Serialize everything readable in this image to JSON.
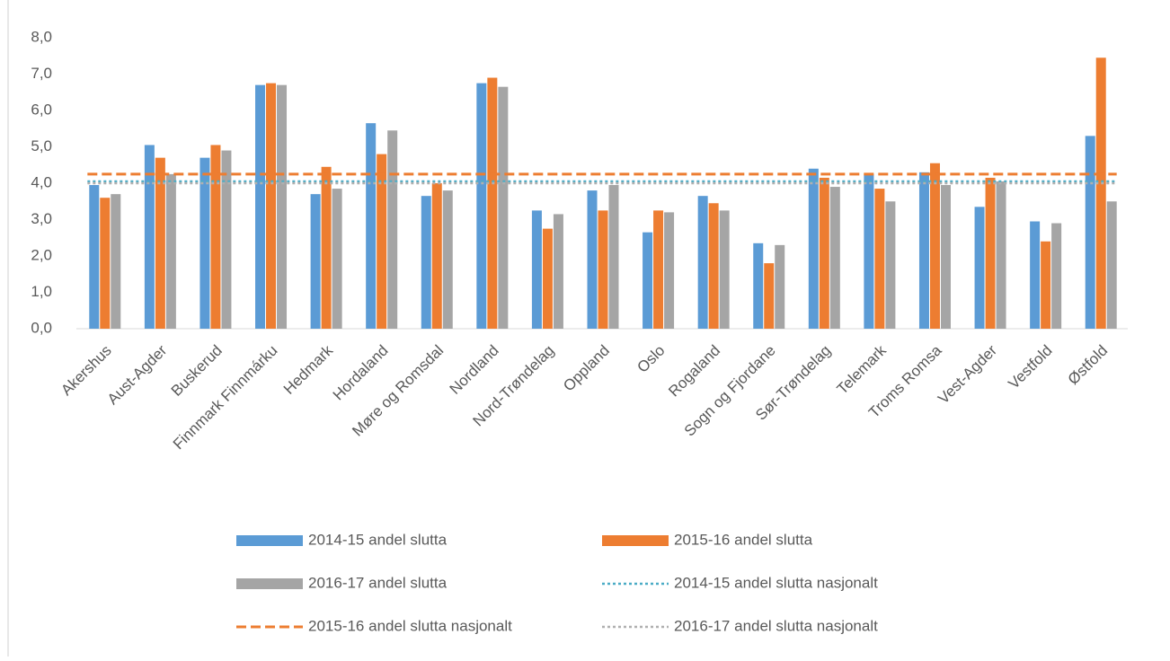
{
  "chart_data": {
    "type": "bar",
    "categories": [
      "Akershus",
      "Aust-Agder",
      "Buskerud",
      "Finnmark Finnmárku",
      "Hedmark",
      "Hordaland",
      "Møre og Romsdal",
      "Nordland",
      "Nord-Trøndelag",
      "Oppland",
      "Oslo",
      "Rogaland",
      "Sogn og Fjordane",
      "Sør-Trøndelag",
      "Telemark",
      "Troms Romsa",
      "Vest-Agder",
      "Vestfold",
      "Østfold"
    ],
    "series": [
      {
        "name": "2014-15 andel slutta",
        "type": "bar",
        "color": "#5b9bd5",
        "values": [
          3.95,
          5.05,
          4.7,
          6.7,
          3.7,
          5.65,
          3.65,
          6.75,
          3.25,
          3.8,
          2.65,
          3.65,
          2.35,
          4.4,
          4.25,
          4.3,
          3.35,
          2.95,
          5.3
        ]
      },
      {
        "name": "2015-16 andel slutta",
        "type": "bar",
        "color": "#ed7d31",
        "values": [
          3.6,
          4.7,
          5.05,
          6.75,
          4.45,
          4.8,
          4.0,
          6.9,
          2.75,
          3.25,
          3.25,
          3.45,
          1.8,
          4.15,
          3.85,
          4.55,
          4.15,
          2.4,
          7.45
        ]
      },
      {
        "name": "2016-17 andel slutta",
        "type": "bar",
        "color": "#a5a5a5",
        "values": [
          3.7,
          4.25,
          4.9,
          6.7,
          3.85,
          5.45,
          3.8,
          6.65,
          3.15,
          3.95,
          3.2,
          3.25,
          2.3,
          3.9,
          3.5,
          3.95,
          4.05,
          2.9,
          3.5
        ]
      },
      {
        "name": "2014-15 andel slutta nasjonalt",
        "type": "line",
        "dash": "dotted",
        "color": "#4bacc6",
        "value": 4.05
      },
      {
        "name": "2015-16 andel slutta nasjonalt",
        "type": "line",
        "dash": "dashed",
        "color": "#ed7d31",
        "value": 4.25
      },
      {
        "name": "2016-17 andel slutta nasjonalt",
        "type": "line",
        "dash": "dotted",
        "color": "#b0b0b0",
        "value": 4.0
      }
    ],
    "ylim": [
      0,
      8
    ],
    "yticks": [
      {
        "value": 0,
        "label": "0,0"
      },
      {
        "value": 1,
        "label": "1,0"
      },
      {
        "value": 2,
        "label": "2,0"
      },
      {
        "value": 3,
        "label": "3,0"
      },
      {
        "value": 4,
        "label": "4,0"
      },
      {
        "value": 5,
        "label": "5,0"
      },
      {
        "value": 6,
        "label": "6,0"
      },
      {
        "value": 7,
        "label": "7,0"
      },
      {
        "value": 8,
        "label": "8,0"
      }
    ],
    "grid": false
  }
}
